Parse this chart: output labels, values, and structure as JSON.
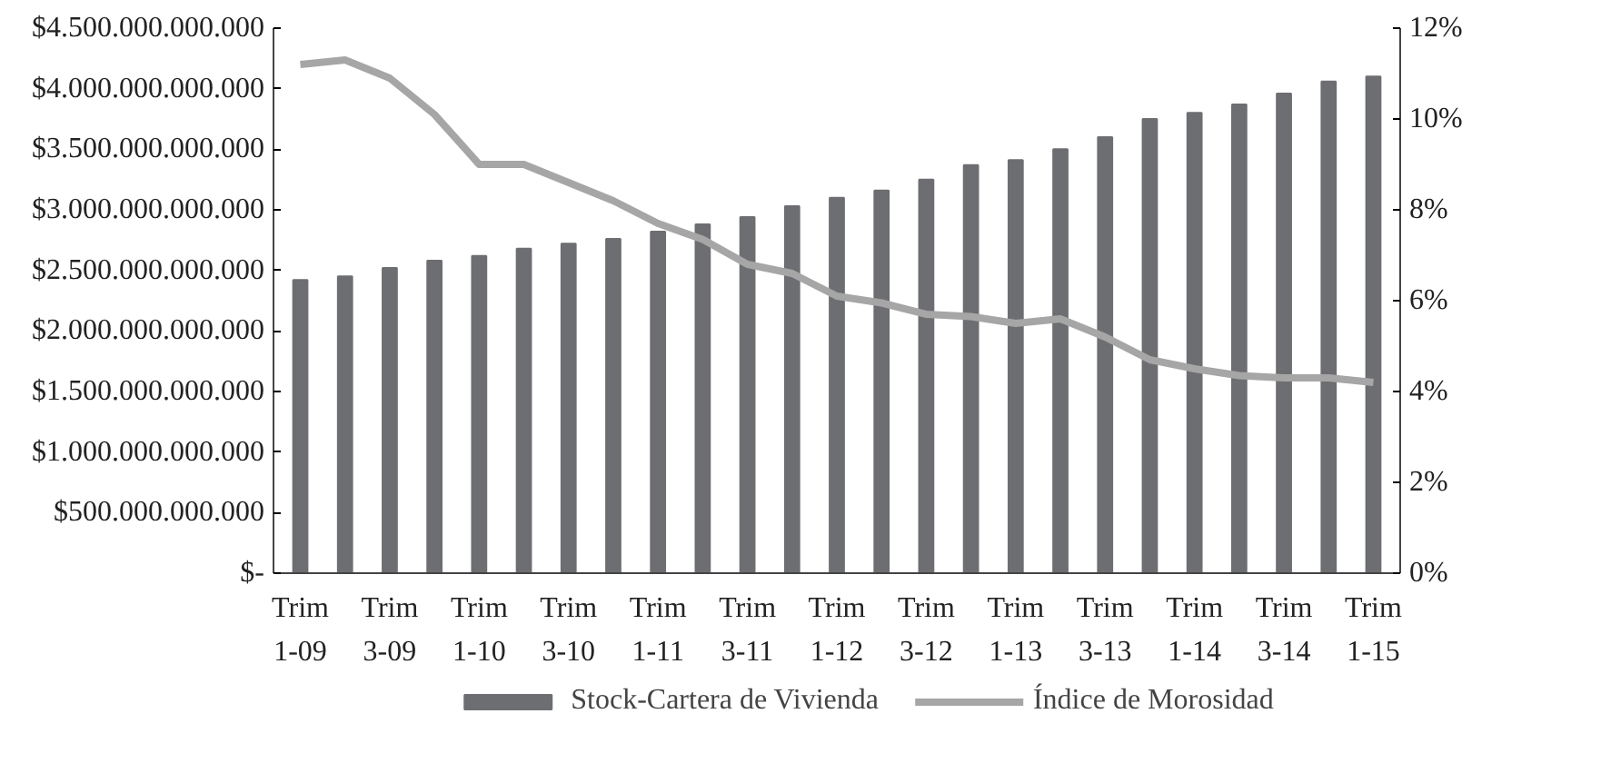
{
  "chart_data": {
    "type": "bar",
    "categories": [
      "Trim 1-09",
      null,
      "Trim 3-09",
      null,
      "Trim 1-10",
      null,
      "Trim 3-10",
      null,
      "Trim 1-11",
      null,
      "Trim 3-11",
      null,
      "Trim 1-12",
      null,
      "Trim 3-12",
      null,
      "Trim 1-13",
      null,
      "Trim 3-13",
      null,
      "Trim 1-14",
      null,
      "Trim 3-14",
      null,
      "Trim 1-15"
    ],
    "series": [
      {
        "name": "Stock-Cartera de Vivienda",
        "type": "bar",
        "color": "#6d6e71",
        "values": [
          2420000000000,
          2450000000000,
          2520000000000,
          2580000000000,
          2620000000000,
          2680000000000,
          2720000000000,
          2760000000000,
          2820000000000,
          2880000000000,
          2940000000000,
          3030000000000,
          3100000000000,
          3160000000000,
          3250000000000,
          3370000000000,
          3410000000000,
          3500000000000,
          3600000000000,
          3750000000000,
          3800000000000,
          3870000000000,
          3960000000000,
          4060000000000,
          4100000000000
        ]
      },
      {
        "name": "Índice de Morosidad",
        "type": "line",
        "axis": "y2",
        "color": "#a6a6a6",
        "values": [
          11.2,
          11.3,
          10.9,
          10.1,
          9.0,
          9.0,
          8.6,
          8.2,
          7.7,
          7.35,
          6.8,
          6.6,
          6.1,
          5.95,
          5.7,
          5.65,
          5.5,
          5.6,
          5.2,
          4.7,
          4.5,
          4.35,
          4.3,
          4.3,
          4.2
        ]
      }
    ],
    "ylim": [
      0,
      4500000000000
    ],
    "yticks": [
      {
        "value": 0,
        "label": "$-"
      },
      {
        "value": 500000000000,
        "label": "$500.000.000.000"
      },
      {
        "value": 1000000000000,
        "label": "$1.000.000.000.000"
      },
      {
        "value": 1500000000000,
        "label": "$1.500.000.000.000"
      },
      {
        "value": 2000000000000,
        "label": "$2.000.000.000.000"
      },
      {
        "value": 2500000000000,
        "label": "$2.500.000.000.000"
      },
      {
        "value": 3000000000000,
        "label": "$3.000.000.000.000"
      },
      {
        "value": 3500000000000,
        "label": "$3.500.000.000.000"
      },
      {
        "value": 4000000000000,
        "label": "$4.000.000.000.000"
      },
      {
        "value": 4500000000000,
        "label": "$4.500.000.000.000"
      }
    ],
    "y2lim": [
      0,
      12
    ],
    "y2ticks": [
      {
        "value": 0,
        "label": "0%"
      },
      {
        "value": 2,
        "label": "2%"
      },
      {
        "value": 4,
        "label": "4%"
      },
      {
        "value": 6,
        "label": "6%"
      },
      {
        "value": 8,
        "label": "8%"
      },
      {
        "value": 10,
        "label": "10%"
      },
      {
        "value": 12,
        "label": "12%"
      }
    ],
    "grid": false,
    "legend": "bottom"
  }
}
